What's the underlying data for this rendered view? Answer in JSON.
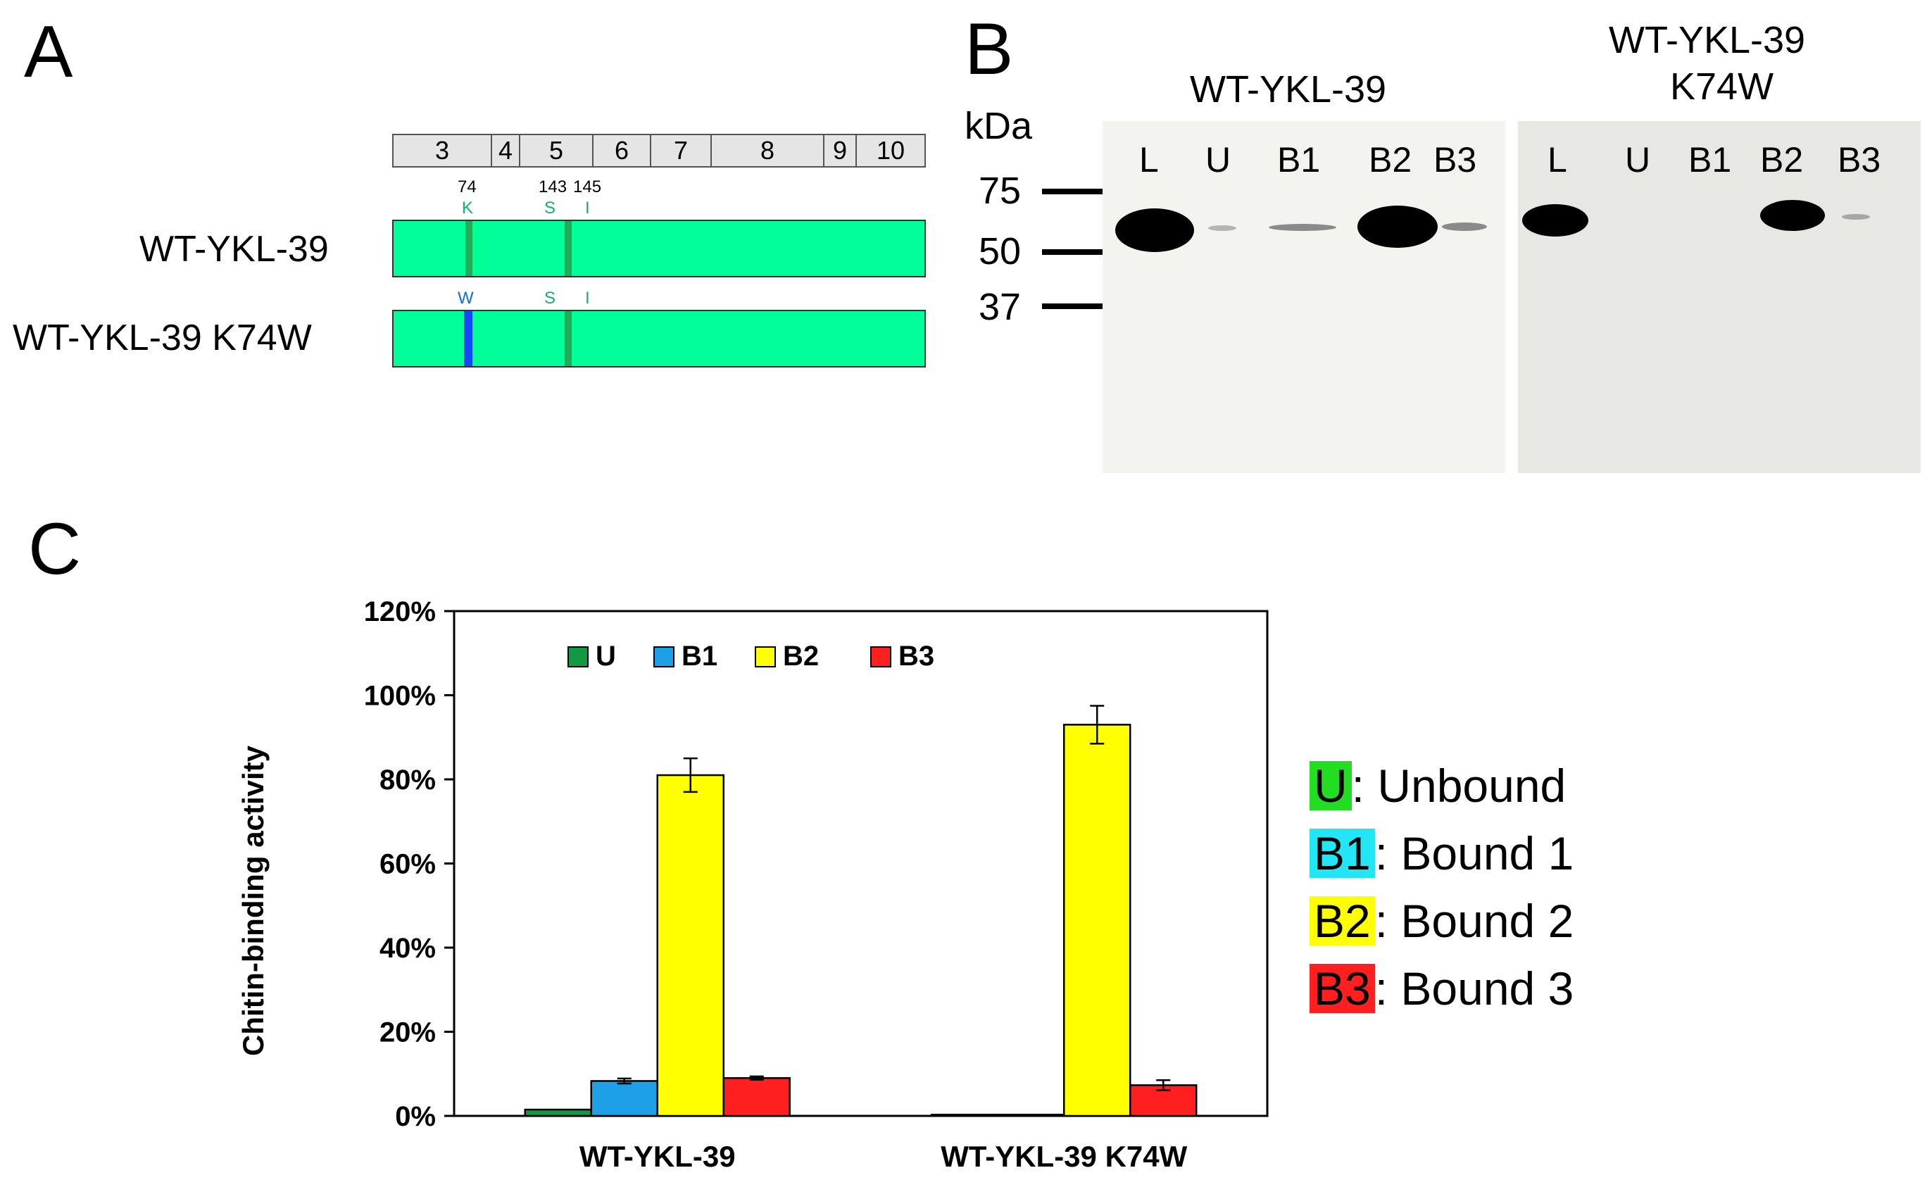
{
  "panels": {
    "a": "A",
    "b": "B",
    "c": "C"
  },
  "panel_a": {
    "exons": [
      "3",
      "4",
      "5",
      "6",
      "7",
      "8",
      "9",
      "10"
    ],
    "positions": [
      "74",
      "143",
      "145"
    ],
    "wt_residues": [
      "K",
      "S",
      "I"
    ],
    "mut_residues": [
      "W",
      "S",
      "I"
    ],
    "row_labels": [
      "WT-YKL-39",
      "WT-YKL-39 K74W"
    ]
  },
  "panel_b": {
    "unit": "kDa",
    "markers": [
      "75",
      "50",
      "37"
    ],
    "blot1_title": "WT-YKL-39",
    "blot2_title_line1": "WT-YKL-39",
    "blot2_title_line2": "K74W",
    "lanes": [
      "L",
      "U",
      "B1",
      "B2",
      "B3"
    ]
  },
  "legend": [
    {
      "key": "U",
      "text": ": Unbound",
      "color": "#22dd22"
    },
    {
      "key": "B1",
      "text": ": Bound 1",
      "color": "#22e5f5"
    },
    {
      "key": "B2",
      "text": ": Bound 2",
      "color": "#ffff00"
    },
    {
      "key": "B3",
      "text": ": Bound 3",
      "color": "#ff1f1f"
    }
  ],
  "chart_data": {
    "type": "bar",
    "ylabel": "Chitin-binding activity",
    "ylim": [
      0,
      120
    ],
    "yticks": [
      "0%",
      "20%",
      "40%",
      "60%",
      "80%",
      "100%",
      "120%"
    ],
    "categories": [
      "WT-YKL-39",
      "WT-YKL-39 K74W"
    ],
    "series": [
      {
        "name": "U",
        "color": "#119944",
        "values": [
          1.5,
          0.3
        ],
        "errors": [
          0,
          0
        ]
      },
      {
        "name": "B1",
        "color": "#1ea0e6",
        "values": [
          8.3,
          0.3
        ],
        "errors": [
          0.6,
          0
        ]
      },
      {
        "name": "B2",
        "color": "#ffff00",
        "values": [
          81,
          93
        ],
        "errors": [
          4,
          4.5
        ]
      },
      {
        "name": "B3",
        "color": "#ff1f1f",
        "values": [
          9,
          7.3
        ],
        "errors": [
          0.4,
          1.2
        ]
      }
    ],
    "legend_position": "top-left inside",
    "grid": false
  }
}
